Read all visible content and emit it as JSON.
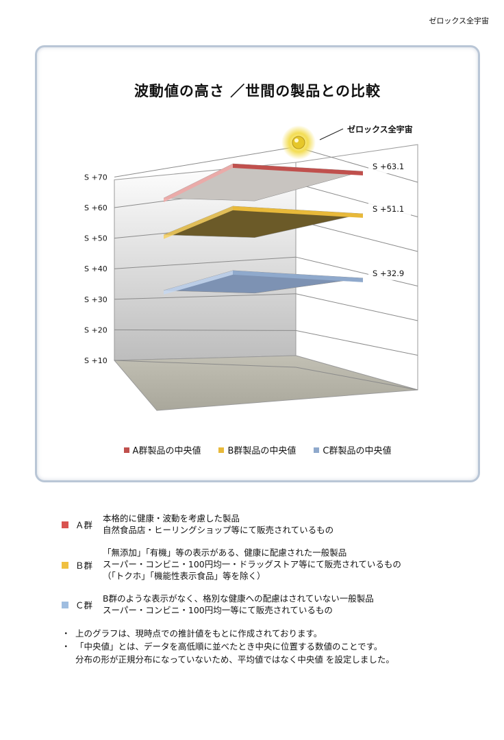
{
  "header": {
    "brand": "ゼロックス全宇宙"
  },
  "chart_data": {
    "type": "bar",
    "title": "波動値の高さ ／世間の製品との比較",
    "yaxis_ticks": [
      "S +70",
      "S +60",
      "S +50",
      "S +40",
      "S +30",
      "S +20",
      "S +10"
    ],
    "ylim": [
      10,
      70
    ],
    "series": [
      {
        "name": "A群製品の中央値",
        "value": 63.1,
        "label": "S +63.1",
        "color": "#c0504d"
      },
      {
        "name": "B群製品の中央値",
        "value": 51.1,
        "label": "S +51.1",
        "color": "#e8b93a"
      },
      {
        "name": "C群製品の中央値",
        "value": 32.9,
        "label": "S +32.9",
        "color": "#8fa9cc"
      }
    ],
    "annotation": "ゼロックス全宇宙",
    "grid": true,
    "legend_position": "bottom"
  },
  "notes": {
    "groups": [
      {
        "label": "Ａ群",
        "color": "#d9534f",
        "lines": [
          "本格的に健康・波動を考慮した製品",
          "自然食品店・ヒーリングショップ等にて販売されているもの"
        ]
      },
      {
        "label": "Ｂ群",
        "color": "#f0c040",
        "lines": [
          "「無添加」「有機」等の表示がある、健康に配慮された一般製品",
          "スーパー・コンビニ・100円均一・ドラッグストア等にて販売されているもの",
          "（「トクホ」「機能性表示食品」等を除く）"
        ]
      },
      {
        "label": "Ｃ群",
        "color": "#9fbde0",
        "lines": [
          "B群のような表示がなく、格別な健康への配慮はされていない一般製品",
          "スーパー・コンビニ・100円均一等にて販売されているもの"
        ]
      }
    ],
    "bullets": [
      "・",
      "上のグラフは、現時点での推計値をもとに作成されております。",
      "「中央値」とは、データを高低順に並べたとき中央に位置する数値のことです。",
      "分布の形が正規分布になっていないため、平均値ではなく中央値 を設定しました。"
    ]
  }
}
